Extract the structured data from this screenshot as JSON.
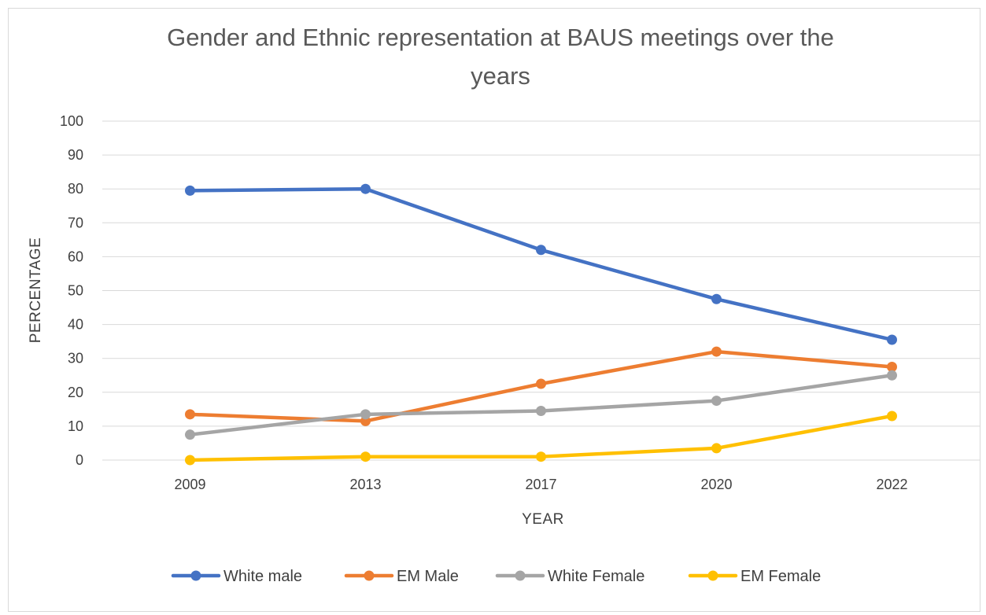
{
  "chart_data": {
    "type": "line",
    "title": "Gender and Ethnic representation at BAUS meetings over the years",
    "title_lines": [
      "Gender and Ethnic representation at BAUS meetings over the",
      "years"
    ],
    "xlabel": "YEAR",
    "ylabel": "PERCENTAGE",
    "categories": [
      "2009",
      "2013",
      "2017",
      "2020",
      "2022"
    ],
    "ylim": [
      0,
      100
    ],
    "yticks": [
      0,
      10,
      20,
      30,
      40,
      50,
      60,
      70,
      80,
      90,
      100
    ],
    "grid": "horizontal",
    "legend_position": "bottom",
    "series": [
      {
        "name": "White male",
        "color": "#4472C4",
        "values": [
          79.5,
          80,
          62,
          47.5,
          35.5
        ]
      },
      {
        "name": "EM Male",
        "color": "#ED7D31",
        "values": [
          13.5,
          11.5,
          22.5,
          32,
          27.5
        ]
      },
      {
        "name": "White Female",
        "color": "#A5A5A5",
        "values": [
          7.5,
          13.5,
          14.5,
          17.5,
          25
        ]
      },
      {
        "name": "EM Female",
        "color": "#FFC000",
        "values": [
          0,
          1,
          1,
          3.5,
          13
        ]
      }
    ]
  }
}
